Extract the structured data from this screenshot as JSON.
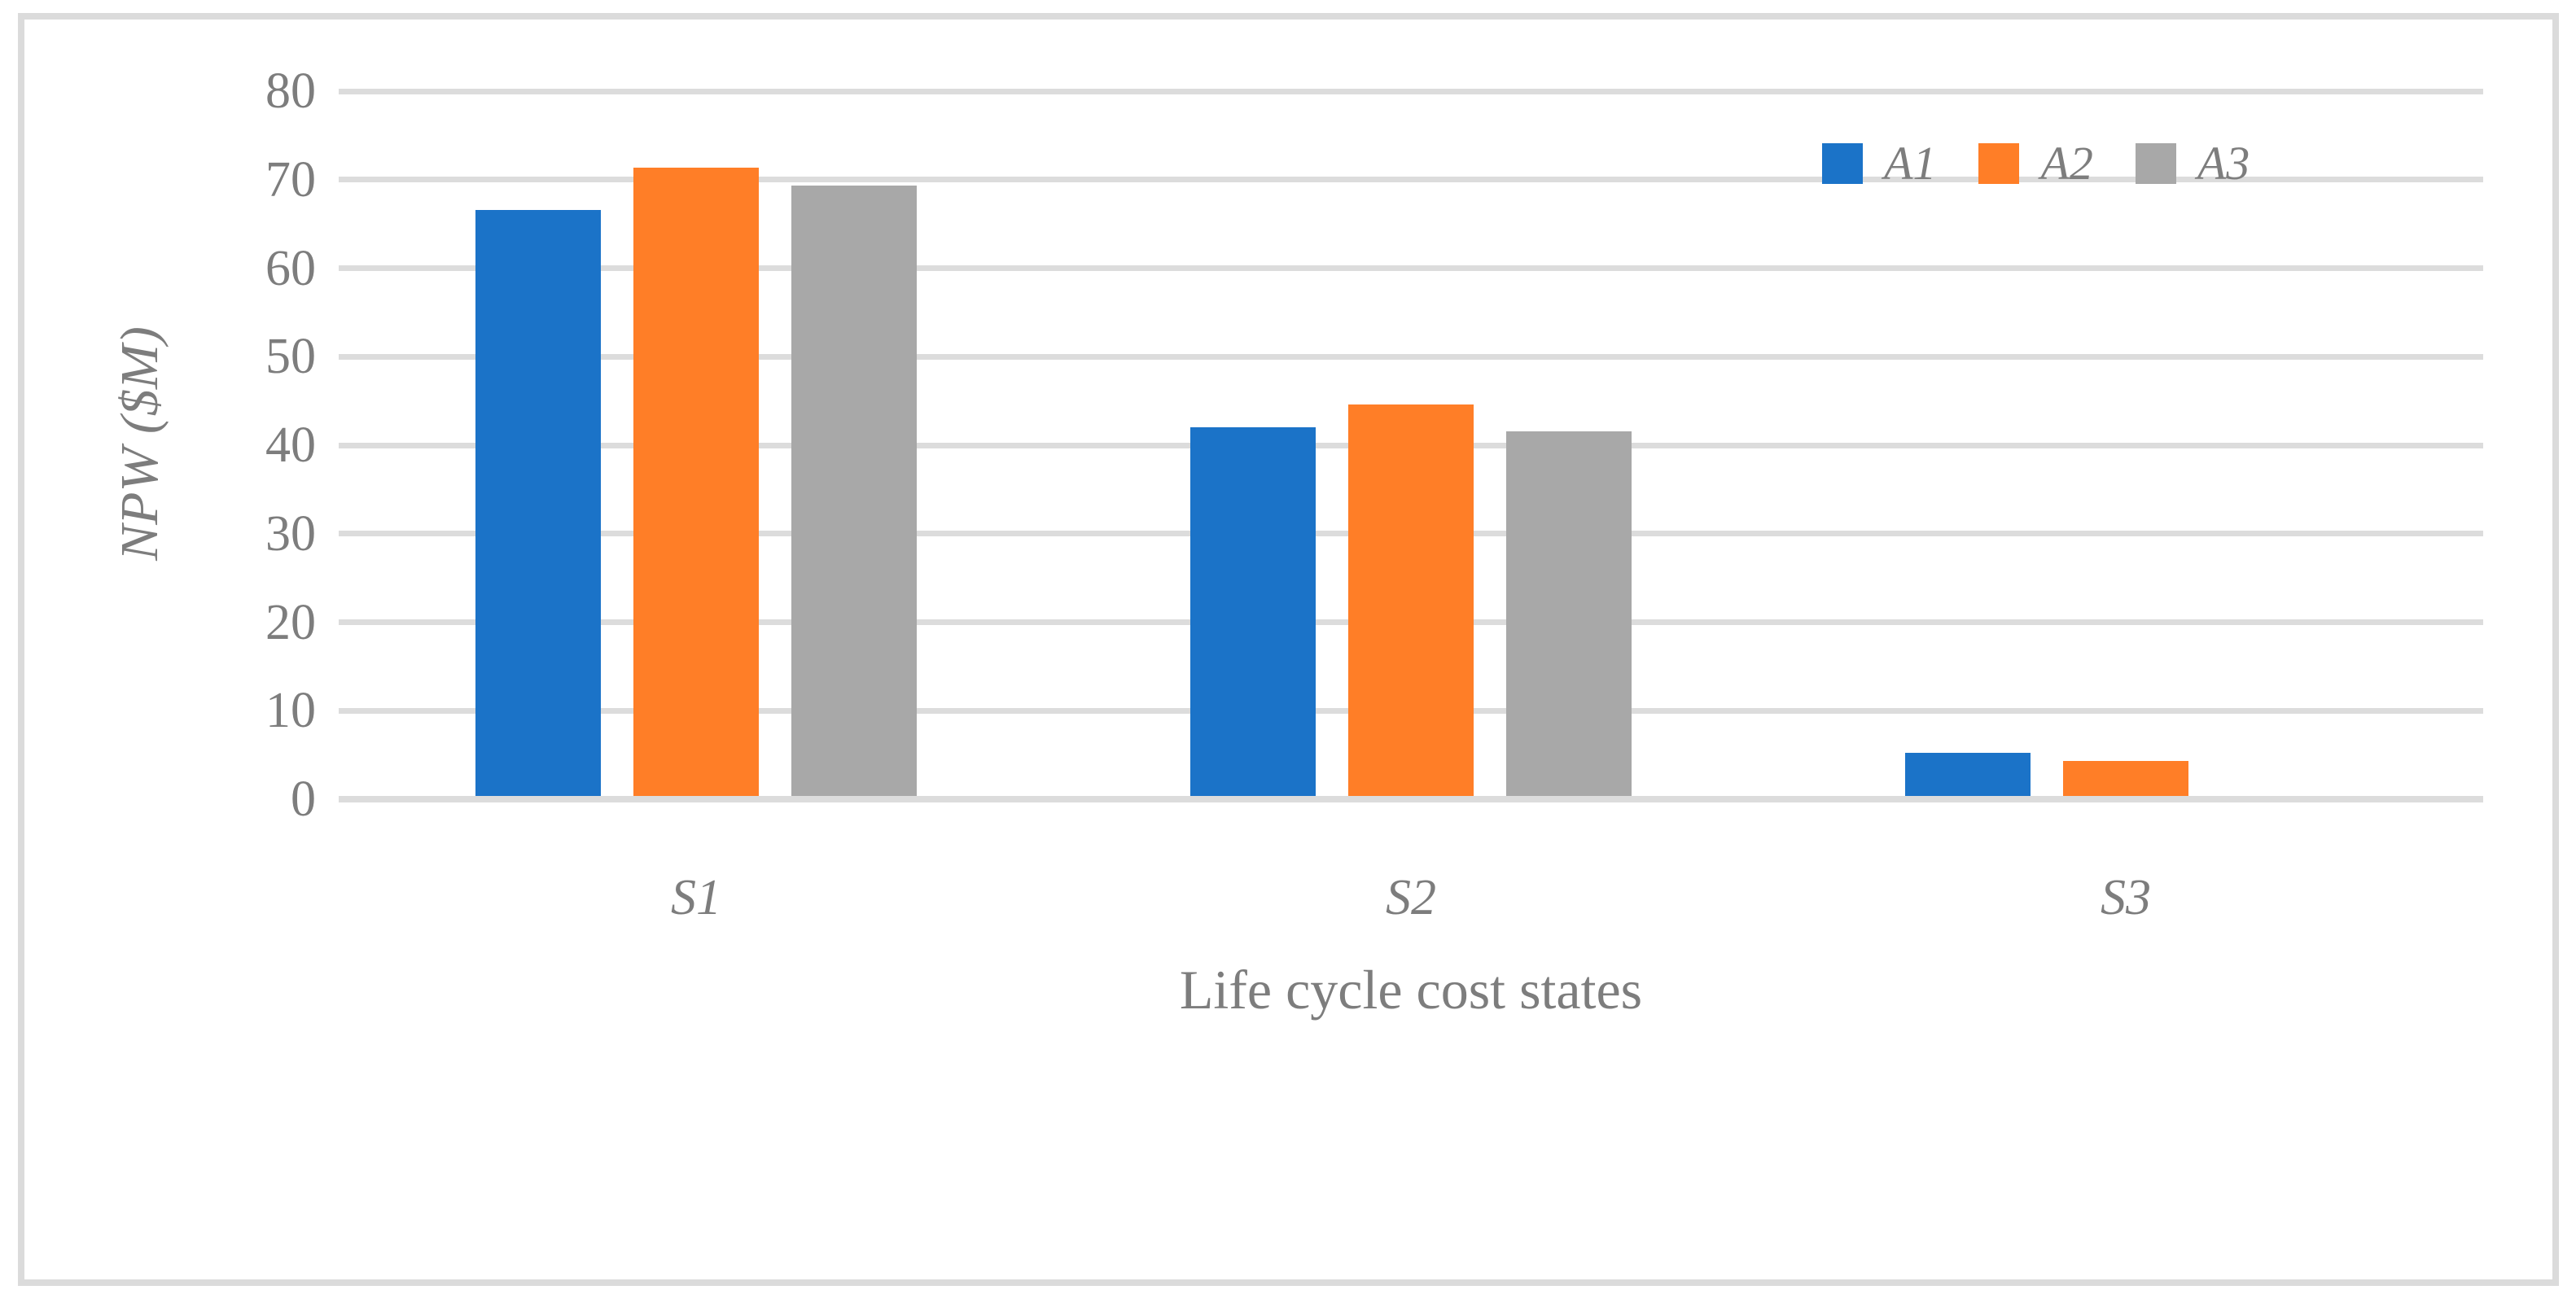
{
  "chart_data": {
    "type": "bar",
    "title": "",
    "xlabel": "Life cycle cost states",
    "ylabel": "NPW ($M)",
    "categories": [
      "S1",
      "S2",
      "S3"
    ],
    "series": [
      {
        "name": "A1",
        "color": "#1b73c8",
        "values": [
          66.6,
          42.0,
          5.2
        ]
      },
      {
        "name": "A2",
        "color": "#ff7e27",
        "values": [
          71.4,
          44.6,
          4.3
        ]
      },
      {
        "name": "A3",
        "color": "#a8a8a8",
        "values": [
          69.3,
          41.6,
          0
        ]
      }
    ],
    "ylim": [
      0,
      80
    ],
    "yticks": [
      0,
      10,
      20,
      30,
      40,
      50,
      60,
      70,
      80
    ],
    "grid": true,
    "legend_position": "top-right"
  },
  "colors": {
    "gridline": "#dcdcdc",
    "frame_border": "#dbdbdb",
    "text": "#7d7d7d",
    "background": "#ffffff"
  }
}
